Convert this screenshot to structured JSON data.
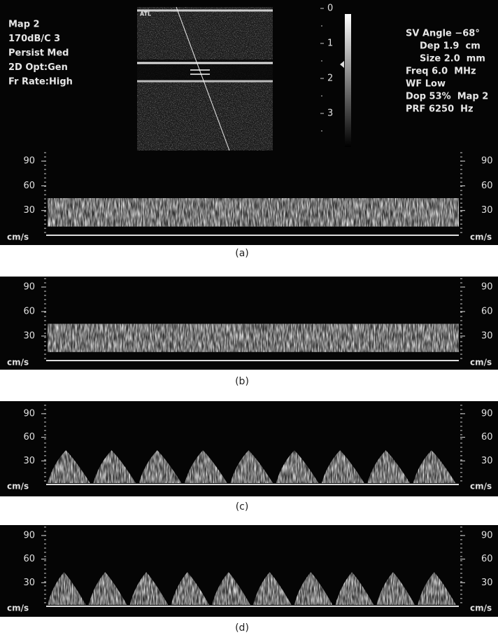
{
  "settings_left": [
    "Map 2",
    "170dB/C 3",
    "Persist Med",
    "2D Opt:Gen",
    "Fr Rate:High"
  ],
  "settings_right": [
    "SV Angle −68°",
    "Dep 1.9  cm",
    "Size 2.0  mm",
    "Freq 6.0  MHz",
    "WF Low",
    "Dop 53%  Map 2",
    "PRF 6250  Hz"
  ],
  "bmode_label": "ATL",
  "grayscale_ticks": [
    0,
    1,
    2,
    3
  ],
  "panels": [
    {
      "label": "(a)",
      "yticks": [
        90,
        60,
        30
      ],
      "unit": "cm/s"
    },
    {
      "label": "(b)",
      "yticks": [
        90,
        60,
        30
      ],
      "unit": "cm/s"
    },
    {
      "label": "(c)",
      "yticks": [
        90,
        60,
        30
      ],
      "unit": "cm/s"
    },
    {
      "label": "(d)",
      "yticks": [
        90,
        60,
        30
      ],
      "unit": "cm/s"
    }
  ]
}
